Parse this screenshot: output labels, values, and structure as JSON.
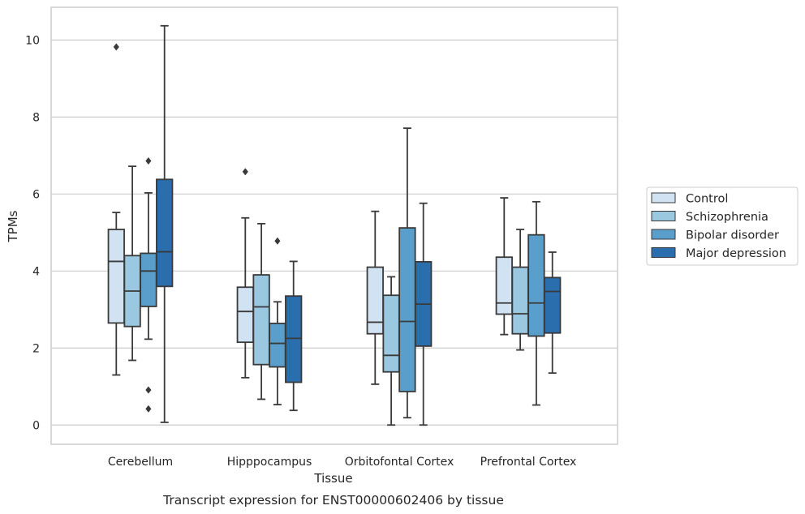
{
  "chart_data": {
    "type": "box",
    "title": "",
    "caption": "Transcript expression for ENST00000602406 by tissue",
    "xlabel": "Tissue",
    "ylabel": "TPMs",
    "ylim": [
      -0.5,
      10.85
    ],
    "yticks": [
      0,
      2,
      4,
      6,
      8,
      10
    ],
    "grid": "horizontal",
    "legend_placement": "right",
    "categories": [
      "Cerebellum",
      "Hipppocampus",
      "Orbitofontal Cortex",
      "Prefrontal Cortex"
    ],
    "series": [
      {
        "name": "Control",
        "color": "#d1e2f2",
        "boxes": [
          {
            "whisker_low": 1.3,
            "q1": 2.65,
            "median": 4.25,
            "q3": 5.08,
            "whisker_high": 5.52,
            "outliers": [
              9.82
            ]
          },
          {
            "whisker_low": 1.23,
            "q1": 2.15,
            "median": 2.95,
            "q3": 3.58,
            "whisker_high": 5.38,
            "outliers": [
              6.58
            ]
          },
          {
            "whisker_low": 1.06,
            "q1": 2.37,
            "median": 2.67,
            "q3": 4.1,
            "whisker_high": 5.55,
            "outliers": []
          },
          {
            "whisker_low": 2.35,
            "q1": 2.88,
            "median": 3.17,
            "q3": 4.36,
            "whisker_high": 5.9,
            "outliers": []
          }
        ]
      },
      {
        "name": "Schizophrenia",
        "color": "#9ac8e0",
        "boxes": [
          {
            "whisker_low": 1.68,
            "q1": 2.56,
            "median": 3.48,
            "q3": 4.4,
            "whisker_high": 6.72,
            "outliers": []
          },
          {
            "whisker_low": 0.67,
            "q1": 1.57,
            "median": 3.07,
            "q3": 3.9,
            "whisker_high": 5.23,
            "outliers": []
          },
          {
            "whisker_low": 0.0,
            "q1": 1.38,
            "median": 1.81,
            "q3": 3.37,
            "whisker_high": 3.85,
            "outliers": []
          },
          {
            "whisker_low": 1.95,
            "q1": 2.37,
            "median": 2.89,
            "q3": 4.1,
            "whisker_high": 5.08,
            "outliers": []
          }
        ]
      },
      {
        "name": "Bipolar disorder",
        "color": "#5a9fcb",
        "boxes": [
          {
            "whisker_low": 2.23,
            "q1": 3.08,
            "median": 4.0,
            "q3": 4.46,
            "whisker_high": 6.03,
            "outliers": [
              6.86,
              0.91,
              0.42
            ]
          },
          {
            "whisker_low": 0.53,
            "q1": 1.51,
            "median": 2.12,
            "q3": 2.64,
            "whisker_high": 3.2,
            "outliers": [
              4.78
            ]
          },
          {
            "whisker_low": 0.19,
            "q1": 0.87,
            "median": 2.69,
            "q3": 5.12,
            "whisker_high": 7.71,
            "outliers": []
          },
          {
            "whisker_low": 0.52,
            "q1": 2.31,
            "median": 3.17,
            "q3": 4.94,
            "whisker_high": 5.8,
            "outliers": []
          }
        ]
      },
      {
        "name": "Major depression",
        "color": "#2a6ead",
        "boxes": [
          {
            "whisker_low": 0.07,
            "q1": 3.6,
            "median": 4.5,
            "q3": 6.38,
            "whisker_high": 10.37,
            "outliers": []
          },
          {
            "whisker_low": 0.38,
            "q1": 1.11,
            "median": 2.25,
            "q3": 3.35,
            "whisker_high": 4.25,
            "outliers": []
          },
          {
            "whisker_low": 0.0,
            "q1": 2.05,
            "median": 3.14,
            "q3": 4.24,
            "whisker_high": 5.76,
            "outliers": []
          },
          {
            "whisker_low": 1.35,
            "q1": 2.39,
            "median": 3.47,
            "q3": 3.83,
            "whisker_high": 4.49,
            "outliers": []
          }
        ]
      }
    ]
  }
}
